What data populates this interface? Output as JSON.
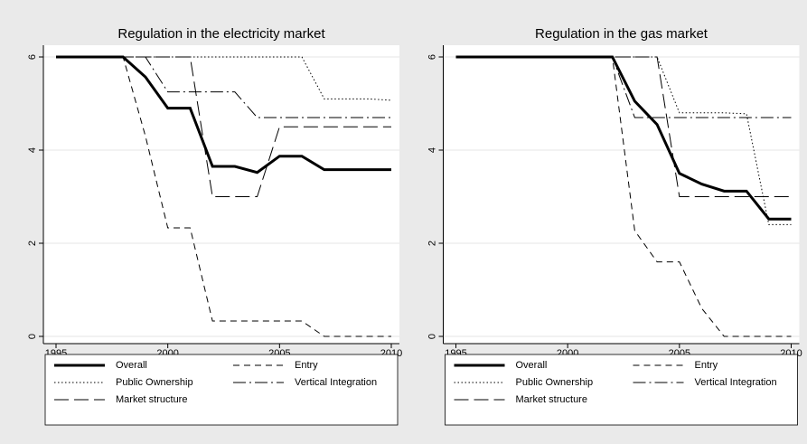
{
  "chart_data": [
    {
      "type": "line",
      "title": "Regulation in the electricity market",
      "x": [
        1995,
        1996,
        1997,
        1998,
        1999,
        2000,
        2001,
        2002,
        2003,
        2004,
        2005,
        2006,
        2007,
        2008,
        2009,
        2010
      ],
      "xlim": [
        1995,
        2010
      ],
      "xticks": [
        1995,
        2000,
        2005,
        2010
      ],
      "ylim": [
        0,
        6
      ],
      "yticks": [
        0,
        2,
        4,
        6
      ],
      "grid": true,
      "series": [
        {
          "name": "Overall",
          "color": "#000000",
          "width": 3,
          "dash": "none",
          "values": [
            6,
            6,
            6,
            6,
            5.57,
            4.9,
            4.9,
            3.65,
            3.65,
            3.52,
            3.87,
            3.87,
            3.58,
            3.58,
            3.58,
            3.58
          ]
        },
        {
          "name": "Entry",
          "color": "#000000",
          "width": 1,
          "dash": "7 5",
          "values": [
            6,
            6,
            6,
            6,
            4.3,
            2.33,
            2.33,
            0.33,
            0.33,
            0.33,
            0.33,
            0.33,
            0,
            0,
            0,
            0
          ]
        },
        {
          "name": "Public Ownership",
          "color": "#000000",
          "width": 1,
          "dash": "1.5 2.5",
          "values": [
            6,
            6,
            6,
            6,
            6,
            6,
            6,
            6,
            6,
            6,
            6,
            6,
            5.1,
            5.1,
            5.1,
            5.07
          ]
        },
        {
          "name": "Vertical Integration",
          "color": "#000000",
          "width": 1,
          "dash": "14 4 2 4",
          "values": [
            6,
            6,
            6,
            6,
            6,
            5.25,
            5.25,
            5.25,
            5.25,
            4.7,
            4.7,
            4.7,
            4.7,
            4.7,
            4.7,
            4.7
          ]
        },
        {
          "name": "Market structure",
          "color": "#000000",
          "width": 1,
          "dash": "16 6",
          "values": [
            6,
            6,
            6,
            6,
            6,
            6,
            6,
            3,
            3,
            3,
            4.5,
            4.5,
            4.5,
            4.5,
            4.5,
            4.5
          ]
        }
      ]
    },
    {
      "type": "line",
      "title": "Regulation in the gas market",
      "x": [
        1995,
        1996,
        1997,
        1998,
        1999,
        2000,
        2001,
        2002,
        2003,
        2004,
        2005,
        2006,
        2007,
        2008,
        2009,
        2010
      ],
      "xlim": [
        1995,
        2010
      ],
      "xticks": [
        1995,
        2000,
        2005,
        2010
      ],
      "ylim": [
        0,
        6
      ],
      "yticks": [
        0,
        2,
        4,
        6
      ],
      "grid": true,
      "series": [
        {
          "name": "Overall",
          "color": "#000000",
          "width": 3,
          "dash": "none",
          "values": [
            6,
            6,
            6,
            6,
            6,
            6,
            6,
            6,
            5.05,
            4.55,
            3.5,
            3.27,
            3.12,
            3.12,
            2.52,
            2.52
          ]
        },
        {
          "name": "Entry",
          "color": "#000000",
          "width": 1,
          "dash": "7 5",
          "values": [
            6,
            6,
            6,
            6,
            6,
            6,
            6,
            6,
            2.27,
            1.6,
            1.6,
            0.6,
            0,
            0,
            0,
            0
          ]
        },
        {
          "name": "Public Ownership",
          "color": "#000000",
          "width": 1,
          "dash": "1.5 2.5",
          "values": [
            6,
            6,
            6,
            6,
            6,
            6,
            6,
            6,
            6,
            6,
            4.8,
            4.8,
            4.8,
            4.78,
            2.4,
            2.4
          ]
        },
        {
          "name": "Vertical Integration",
          "color": "#000000",
          "width": 1,
          "dash": "14 4 2 4",
          "values": [
            6,
            6,
            6,
            6,
            6,
            6,
            6,
            6,
            4.7,
            4.7,
            4.7,
            4.7,
            4.7,
            4.7,
            4.7,
            4.7
          ]
        },
        {
          "name": "Market structure",
          "color": "#000000",
          "width": 1,
          "dash": "16 6",
          "values": [
            6,
            6,
            6,
            6,
            6,
            6,
            6,
            6,
            6,
            6,
            3,
            3,
            3,
            3,
            3,
            3
          ]
        }
      ]
    }
  ]
}
